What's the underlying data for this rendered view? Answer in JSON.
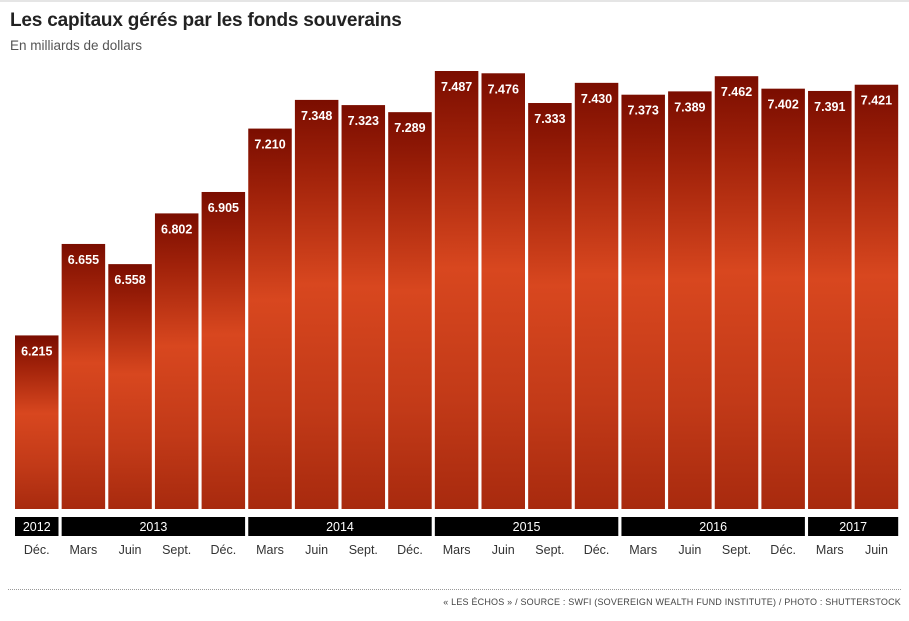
{
  "header": {
    "title": "Les capitaux gérés par les fonds souverains",
    "subtitle": "En milliards de dollars"
  },
  "footer": {
    "source": "« LES ÉCHOS » / SOURCE : SWFI (SOVEREIGN WEALTH FUND INSTITUTE) / PHOTO : SHUTTERSTOCK"
  },
  "colors": {
    "bar_top": "#7f0f00",
    "bar_bottom": "#d7431d",
    "photo_dark": "#8a1a06",
    "year_band": "#000000",
    "value_text": "#ffffff"
  },
  "chart_data": {
    "type": "bar",
    "title": "Les capitaux gérés par les fonds souverains",
    "ylabel": "En milliards de dollars",
    "ylim": [
      0,
      8000
    ],
    "grid": false,
    "legend": "none",
    "categories": [
      "Déc.",
      "Mars",
      "Juin",
      "Sept.",
      "Déc.",
      "Mars",
      "Juin",
      "Sept.",
      "Déc.",
      "Mars",
      "Juin",
      "Sept.",
      "Déc.",
      "Mars",
      "Juin",
      "Sept.",
      "Déc.",
      "Mars",
      "Juin"
    ],
    "value_labels": [
      "6.215",
      "6.655",
      "6.558",
      "6.802",
      "6.905",
      "7.210",
      "7.348",
      "7.323",
      "7.289",
      "7.487",
      "7.476",
      "7.333",
      "7.430",
      "7.373",
      "7.389",
      "7.462",
      "7.402",
      "7.391",
      "7.421"
    ],
    "values": [
      6215,
      6655,
      6558,
      6802,
      6905,
      7210,
      7348,
      7323,
      7289,
      7487,
      7476,
      7333,
      7430,
      7373,
      7389,
      7462,
      7402,
      7391,
      7421
    ],
    "years": [
      {
        "label": "2012",
        "start": 0,
        "end": 0
      },
      {
        "label": "2013",
        "start": 1,
        "end": 4
      },
      {
        "label": "2014",
        "start": 5,
        "end": 8
      },
      {
        "label": "2015",
        "start": 9,
        "end": 12
      },
      {
        "label": "2016",
        "start": 13,
        "end": 16
      },
      {
        "label": "2017",
        "start": 17,
        "end": 18
      }
    ]
  }
}
